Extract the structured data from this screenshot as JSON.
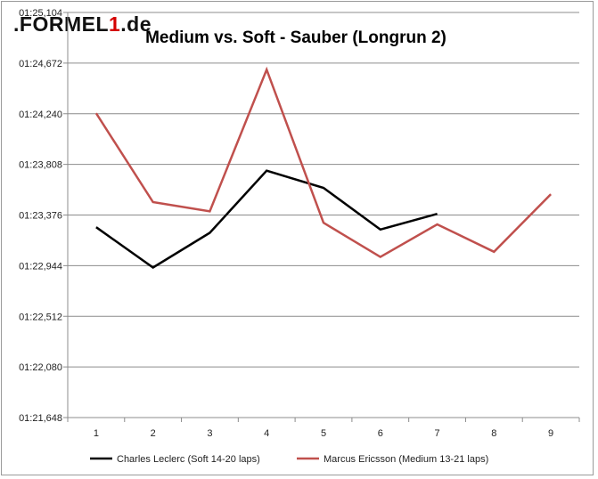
{
  "logo": {
    "prefix": ".FORMEL",
    "highlight": "1",
    "suffix": ".de"
  },
  "chart_data": {
    "type": "line",
    "title": "Medium vs. Soft - Sauber (Longrun 2)",
    "xlabel": "",
    "ylabel": "",
    "categories": [
      "1",
      "2",
      "3",
      "4",
      "5",
      "6",
      "7",
      "8",
      "9"
    ],
    "y_tick_labels": [
      "01:21,648",
      "01:22,080",
      "01:22,512",
      "01:22,944",
      "01:23,376",
      "01:23,808",
      "01:24,240",
      "01:24,672",
      "01:25,104"
    ],
    "y_tick_values": [
      81.648,
      82.08,
      82.512,
      82.944,
      83.376,
      83.808,
      84.24,
      84.672,
      85.104
    ],
    "ylim": [
      81.648,
      85.104
    ],
    "grid": true,
    "legend_position": "bottom",
    "series": [
      {
        "name": "Charles Leclerc (Soft 14-20 laps)",
        "color": "#000000",
        "values": [
          83.272,
          82.928,
          83.224,
          83.754,
          83.608,
          83.252,
          83.386,
          null,
          null
        ]
      },
      {
        "name": "Marcus Ericsson (Medium 13-21 laps)",
        "color": "#c0504d",
        "values": [
          84.244,
          83.486,
          83.408,
          84.616,
          83.31,
          83.018,
          83.296,
          83.062,
          83.554
        ]
      }
    ]
  }
}
